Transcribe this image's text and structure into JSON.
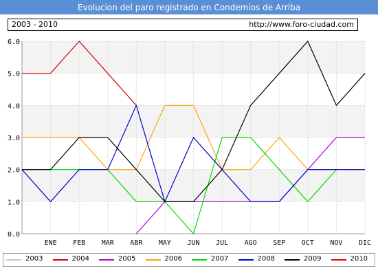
{
  "header": {
    "title": "Evolucion del paro registrado en Condemios de Arriba",
    "years_range": "2003 - 2010",
    "url": "http://www.foro-ciudad.com"
  },
  "chart_data": {
    "type": "line",
    "title": "Evolucion del paro registrado en Condemios de Arriba",
    "xlabel": "",
    "ylabel": "",
    "categories": [
      "",
      "ENE",
      "FEB",
      "MAR",
      "ABR",
      "MAY",
      "JUN",
      "JUL",
      "AGO",
      "SEP",
      "OCT",
      "NOV",
      "DIC"
    ],
    "ylim": [
      0,
      6
    ],
    "y_ticks": [
      "0.0",
      "1.0",
      "2.0",
      "3.0",
      "4.0",
      "5.0",
      "6.0"
    ],
    "grid": true,
    "legend_position": "bottom",
    "series": [
      {
        "name": "2003",
        "color": "#c8c8c8",
        "values": [
          null,
          null,
          null,
          null,
          null,
          null,
          null,
          null,
          null,
          null,
          null,
          null,
          null
        ]
      },
      {
        "name": "2004",
        "color": "#d40000",
        "values": [
          5,
          5,
          6,
          5,
          4,
          null,
          null,
          null,
          null,
          null,
          null,
          null,
          null
        ]
      },
      {
        "name": "2005",
        "color": "#b000e0",
        "values": [
          null,
          null,
          null,
          null,
          0,
          1,
          1,
          1,
          1,
          1,
          2,
          3,
          3
        ]
      },
      {
        "name": "2006",
        "color": "#ffa500",
        "values": [
          3,
          3,
          3,
          2,
          2,
          4,
          4,
          2,
          2,
          3,
          2,
          2,
          2
        ]
      },
      {
        "name": "2007",
        "color": "#00dd00",
        "values": [
          2,
          2,
          2,
          2,
          1,
          1,
          0,
          3,
          3,
          2,
          1,
          2,
          null
        ]
      },
      {
        "name": "2008",
        "color": "#0000cc",
        "values": [
          2,
          1,
          2,
          2,
          4,
          1,
          3,
          2,
          1,
          1,
          2,
          2,
          2
        ]
      },
      {
        "name": "2009",
        "color": "#000000",
        "values": [
          2,
          2,
          3,
          3,
          2,
          1,
          1,
          2,
          4,
          5,
          6,
          4,
          5
        ]
      },
      {
        "name": "2010",
        "color": "#ee0000",
        "values": [
          null,
          null,
          null,
          null,
          null,
          null,
          null,
          null,
          null,
          null,
          null,
          null,
          null
        ]
      }
    ]
  }
}
